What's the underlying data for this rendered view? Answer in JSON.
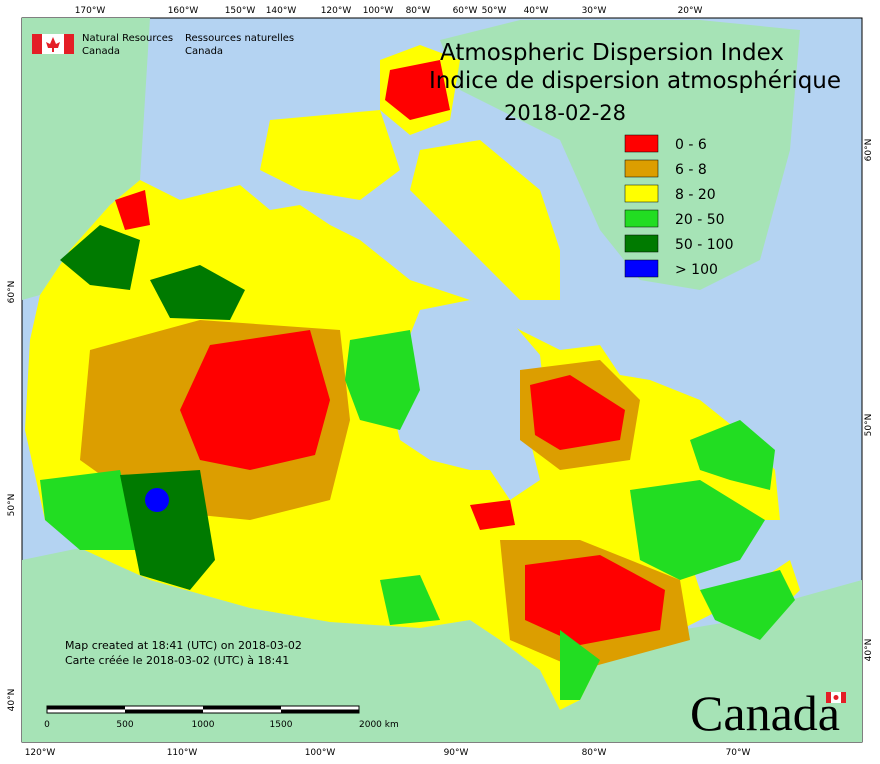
{
  "header": {
    "logo_en": [
      "Natural Resources",
      "Canada"
    ],
    "logo_fr": [
      "Ressources naturelles",
      "Canada"
    ]
  },
  "title": [
    "Atmospheric Dispersion Index",
    "Indice de dispersion atmosphérique"
  ],
  "date": "2018-02-28",
  "legend": [
    {
      "label": "0 - 6",
      "color": "#ff0000"
    },
    {
      "label": "6 - 8",
      "color": "#dc9e00"
    },
    {
      "label": "8 - 20",
      "color": "#ffff00"
    },
    {
      "label": "20 - 50",
      "color": "#22dd22"
    },
    {
      "label": "50 - 100",
      "color": "#007a00"
    },
    {
      "label": "> 100",
      "color": "#0000ff"
    }
  ],
  "graticule": {
    "top": [
      "170°W",
      "160°W",
      "150°W",
      "140°W",
      "120°W",
      "100°W",
      "80°W",
      "60°W",
      "50°W",
      "40°W",
      "30°W",
      "20°W"
    ],
    "bottom": [
      "120°W",
      "110°W",
      "100°W",
      "90°W",
      "80°W",
      "70°W"
    ],
    "left": [
      "60°N",
      "50°N",
      "40°N"
    ],
    "right": [
      "60°N",
      "50°N",
      "40°N"
    ]
  },
  "notes": [
    "Map created at 18:41 (UTC) on 2018-03-02",
    "Carte créée le 2018-03-02 (UTC) à 18:41"
  ],
  "scale_bar": [
    "0",
    "500",
    "1000",
    "1500",
    "2000 km"
  ],
  "wordmark": "Canada"
}
